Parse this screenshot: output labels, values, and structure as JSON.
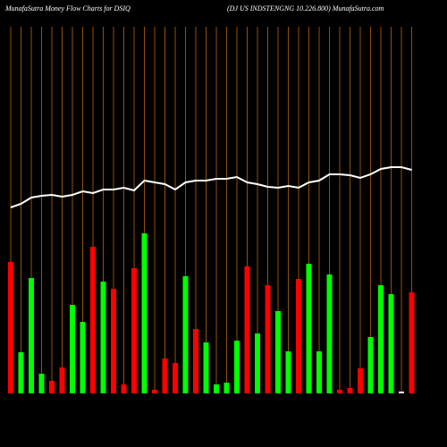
{
  "chart_data": {
    "type": "money-flow",
    "title": "MunafaSutra  Money Flow  Charts for DSIQ",
    "subtitle": "(DJ US INDSTENGNG 10.226.800) MunafaSutra.com",
    "ylim": [
      0,
      410
    ],
    "series": [
      {
        "name": "Money Flow",
        "kind": "bar",
        "colors": [
          "#ff0000",
          "#00ff00",
          "#00ff00",
          "#00ff00",
          "#ff0000",
          "#ff0000",
          "#00ff00",
          "#00ff00",
          "#ff0000",
          "#00ff00",
          "#ff0000",
          "#ff0000",
          "#ff0000",
          "#00ff00",
          "#ff0000",
          "#ff0000",
          "#ff0000",
          "#00ff00",
          "#ff0000",
          "#00ff00",
          "#00ff00",
          "#00ff00",
          "#00ff00",
          "#ff0000",
          "#00ff00",
          "#ff0000",
          "#00ff00",
          "#00ff00",
          "#ff0000",
          "#00ff00",
          "#00ff00",
          "#00ff00",
          "#ff0000",
          "#ff0000",
          "#ff0000",
          "#00ff00",
          "#00ff00",
          "#00ff00",
          "#ffffff",
          "#ff0000"
        ],
        "values": [
          147,
          46,
          129,
          22,
          14,
          29,
          99,
          80,
          164,
          125,
          117,
          10,
          140,
          179,
          4,
          39,
          34,
          131,
          72,
          57,
          10,
          12,
          59,
          142,
          67,
          121,
          92,
          47,
          128,
          145,
          47,
          133,
          4,
          6,
          28,
          63,
          121,
          111,
          2,
          113
        ]
      },
      {
        "name": "Price",
        "kind": "line",
        "color": "#ffffff",
        "values": [
          208,
          212,
          219,
          221,
          222,
          220,
          222,
          226,
          224,
          228,
          228,
          230,
          227,
          238,
          236,
          234,
          228,
          236,
          238,
          238,
          240,
          240,
          242,
          236,
          234,
          231,
          230,
          232,
          230,
          236,
          238,
          245,
          245,
          244,
          241,
          245,
          251,
          253,
          253,
          250
        ]
      }
    ]
  }
}
